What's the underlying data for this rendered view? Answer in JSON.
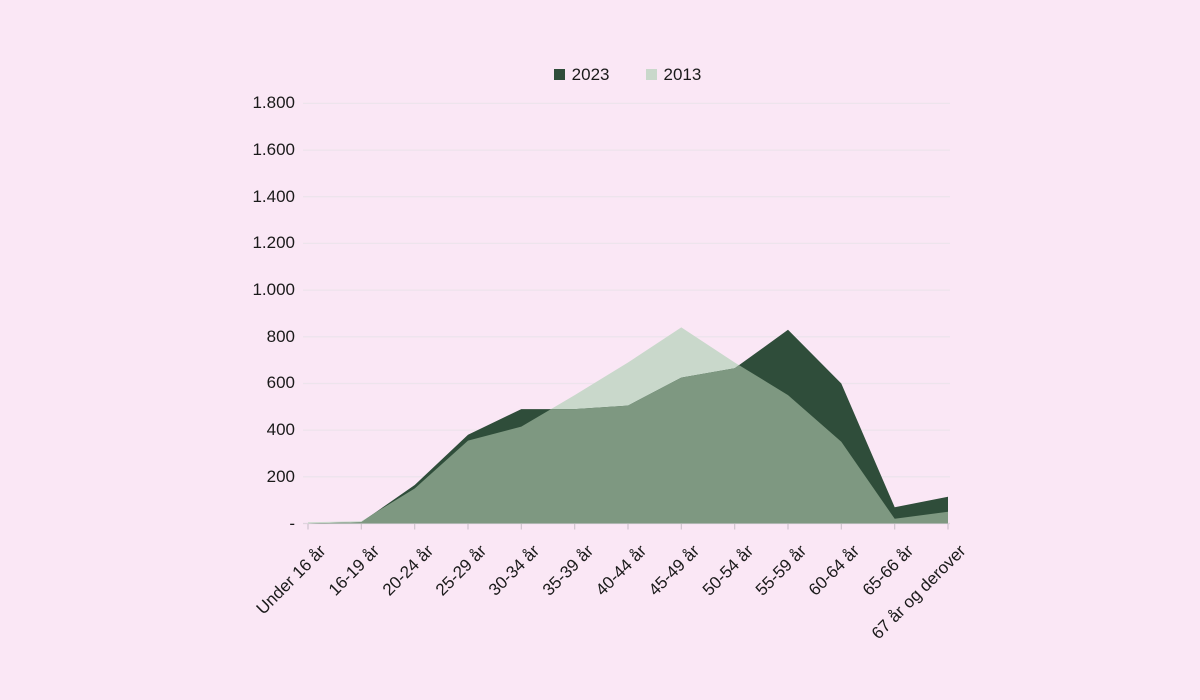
{
  "chart_data": {
    "type": "area",
    "title": "",
    "xlabel": "",
    "ylabel": "",
    "categories": [
      "Under 16 år",
      "16-19 år",
      "20-24 år",
      "25-29 år",
      "30-34 år",
      "35-39 år",
      "40-44 år",
      "45-49 år",
      "50-54 år",
      "55-59 år",
      "60-64 år",
      "65-66 år",
      "67 år og derover"
    ],
    "series": [
      {
        "name": "2023",
        "color": "#2F4D3A",
        "values": [
          0,
          5,
          165,
          380,
          490,
          490,
          505,
          625,
          665,
          830,
          600,
          70,
          115
        ]
      },
      {
        "name": "2013",
        "color": "#C9D8CB",
        "values": [
          5,
          10,
          150,
          355,
          415,
          550,
          690,
          840,
          690,
          550,
          350,
          20,
          50
        ]
      }
    ],
    "overlap_color": "#7E9881",
    "ylim": [
      0,
      1800
    ],
    "y_tick_labels": [
      "1.800",
      "1.600",
      "1.400",
      "1.200",
      "1.000",
      "800",
      "600",
      "400",
      "200",
      "-"
    ],
    "y_tick_values": [
      1800,
      1600,
      1400,
      1200,
      1000,
      800,
      600,
      400,
      200,
      0
    ],
    "grid": true,
    "x_tick_rotation": 45,
    "legend_position": "top-center"
  },
  "colors": {
    "background": "#FAE7F5",
    "gridline": "#EDE4EC",
    "baseline": "#DFD4DE",
    "tick": "#CFC3CE",
    "text": "#1A1A1A"
  }
}
